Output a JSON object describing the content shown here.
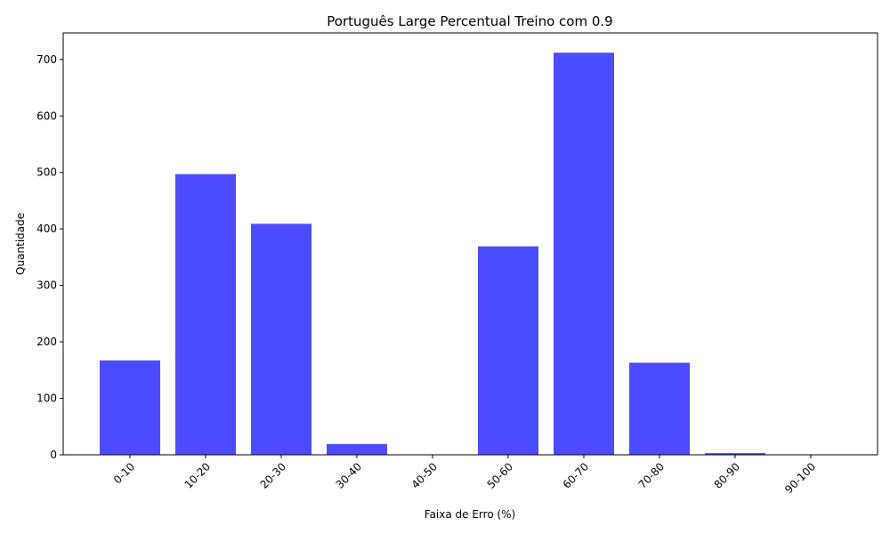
{
  "chart_data": {
    "type": "bar",
    "title": "Português Large Percentual Treino com 0.9",
    "xlabel": "Faixa de Erro (%)",
    "ylabel": "Quantidade",
    "categories": [
      "0-10",
      "10-20",
      "20-30",
      "30-40",
      "40-50",
      "50-60",
      "60-70",
      "70-80",
      "80-90",
      "90-100"
    ],
    "values": [
      167,
      497,
      409,
      19,
      0,
      369,
      712,
      163,
      3,
      0
    ],
    "ylim": [
      0,
      747
    ],
    "yticks": [
      0,
      100,
      200,
      300,
      400,
      500,
      600,
      700
    ],
    "bar_color": "#4b4bff",
    "grid": false,
    "legend": "none"
  }
}
